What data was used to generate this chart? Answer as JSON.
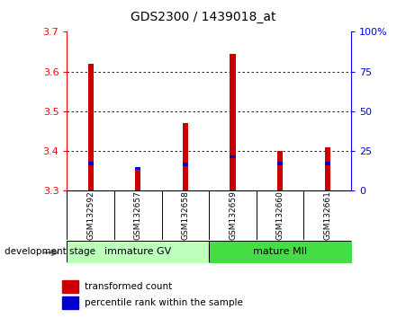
{
  "title": "GDS2300 / 1439018_at",
  "samples": [
    "GSM132592",
    "GSM132657",
    "GSM132658",
    "GSM132659",
    "GSM132660",
    "GSM132661"
  ],
  "red_values": [
    3.62,
    3.355,
    3.47,
    3.645,
    3.4,
    3.41
  ],
  "blue_values": [
    3.365,
    3.352,
    3.362,
    3.382,
    3.365,
    3.365
  ],
  "blue_heights": [
    0.008,
    0.008,
    0.008,
    0.008,
    0.008,
    0.008
  ],
  "baseline": 3.3,
  "ylim_left": [
    3.3,
    3.7
  ],
  "ylim_right": [
    0,
    100
  ],
  "yticks_left": [
    3.3,
    3.4,
    3.5,
    3.6,
    3.7
  ],
  "yticks_right": [
    0,
    25,
    50,
    75,
    100
  ],
  "ytick_labels_right": [
    "0",
    "25",
    "50",
    "75",
    "100%"
  ],
  "grid_lines": [
    3.4,
    3.5,
    3.6
  ],
  "group1_label": "immature GV",
  "group2_label": "mature MII",
  "legend_red": "transformed count",
  "legend_blue": "percentile rank within the sample",
  "dev_stage_label": "development stage",
  "bar_color_red": "#cc0000",
  "bar_color_blue": "#0000cc",
  "group1_color": "#bbffbb",
  "group2_color": "#44dd44",
  "bg_color": "#d8d8d8",
  "plot_bg": "#ffffff",
  "bar_width": 0.12
}
